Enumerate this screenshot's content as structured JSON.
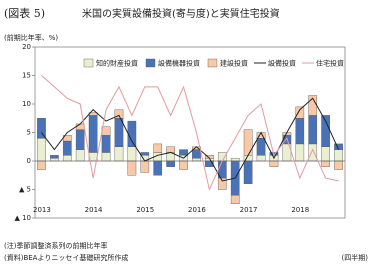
{
  "chart_data": {
    "type": "bar",
    "label": "(図表 5)",
    "title": "米国の実質設備投資(寄与度)と実質住宅投資",
    "y_axis_label": "(前期比年率、%)",
    "x_axis_label": "(四半期)",
    "notes": [
      "(注)季節調整済系列の前期比年率",
      "(資料)BEAよりニッセイ基礎研究所作成"
    ],
    "categories": [
      "2013",
      null,
      null,
      null,
      "2014",
      null,
      null,
      null,
      "2015",
      null,
      null,
      null,
      "2016",
      null,
      null,
      null,
      "2017",
      null,
      null,
      null,
      "2018",
      null,
      null,
      null
    ],
    "ylim": [
      -10,
      20
    ],
    "yticks": [
      {
        "value": -10,
        "label": "▲ 10"
      },
      {
        "value": -5,
        "label": "▲ 5"
      },
      0,
      5,
      10,
      15,
      20
    ],
    "series": [
      {
        "name": "知的財産投資",
        "type": "bar",
        "color": "#eaefcf",
        "values": [
          4,
          0.5,
          1,
          2,
          1.5,
          1.5,
          2.5,
          2.5,
          1,
          1.5,
          1.5,
          1,
          0.5,
          0.5,
          1.5,
          0.5,
          1,
          1,
          1,
          3,
          3,
          3,
          2.5,
          2
        ]
      },
      {
        "name": "設備機器投資",
        "type": "bar",
        "color": "#4a72b8",
        "values": [
          3.5,
          0.5,
          2.5,
          3.5,
          6.5,
          3,
          5,
          4.5,
          0.5,
          -2.5,
          -1,
          1,
          1.5,
          -1,
          -3,
          -6,
          -4,
          3,
          0.5,
          1.5,
          4.5,
          5,
          5.5,
          1
        ]
      },
      {
        "name": "建設投資",
        "type": "bar",
        "color": "#f7c9a6",
        "values": [
          -1.5,
          0,
          1,
          1,
          0.5,
          1.5,
          1.5,
          -2.5,
          -2,
          1.5,
          1,
          -1.5,
          0.5,
          0.5,
          -2,
          -1.5,
          4.5,
          1,
          -1,
          0.5,
          2,
          3.5,
          -1,
          -1.5
        ]
      },
      {
        "name": "設備投資",
        "type": "line",
        "color": "#222222",
        "values": [
          5,
          2,
          5,
          6.5,
          9,
          7,
          8,
          3.5,
          0,
          1,
          1.5,
          0.5,
          2.5,
          0.5,
          -3.5,
          -3,
          1,
          5,
          0.5,
          5,
          9,
          11,
          7,
          2
        ]
      },
      {
        "name": "住宅投資",
        "type": "line",
        "color": "#e39aa0",
        "values": [
          15,
          13,
          11,
          10,
          -3,
          9,
          13,
          8,
          13,
          13,
          8,
          13,
          5,
          -5,
          0,
          4,
          8,
          10,
          1,
          4,
          -3,
          2,
          -3,
          -3.5
        ]
      }
    ]
  }
}
